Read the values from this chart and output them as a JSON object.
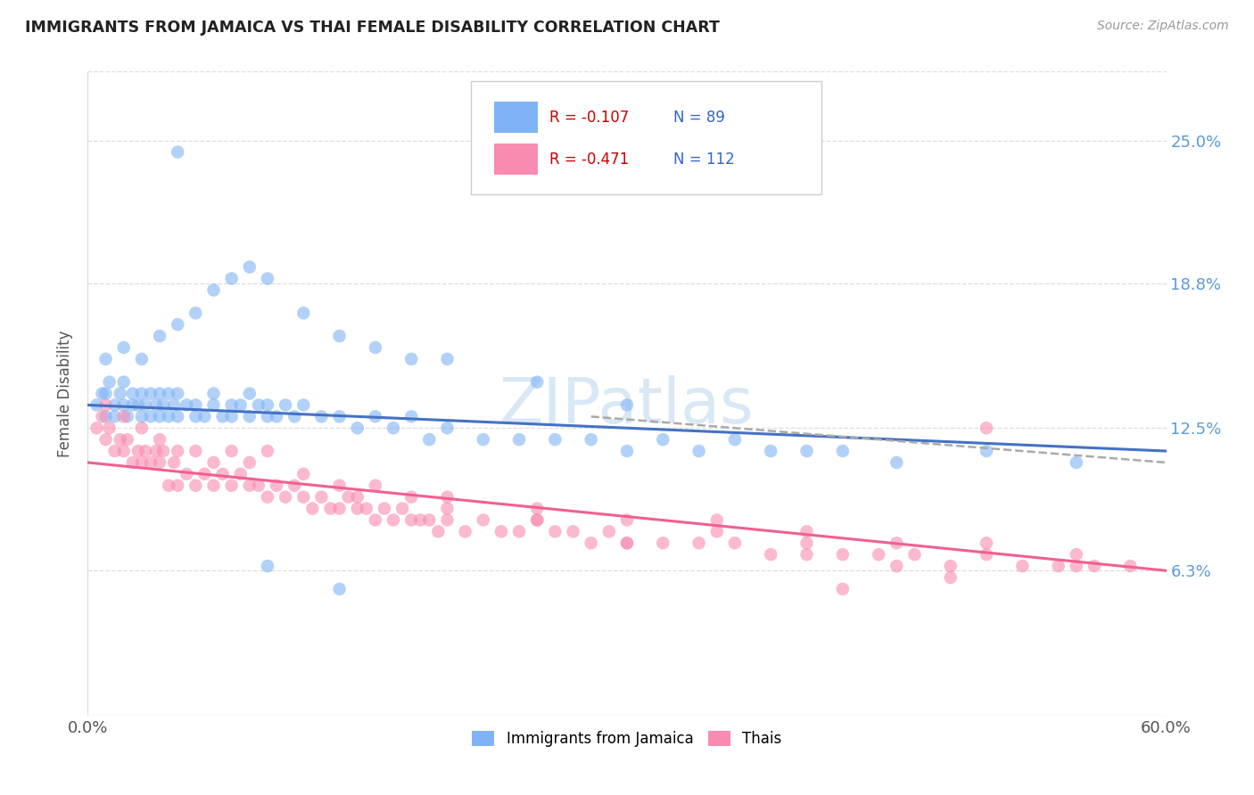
{
  "title": "IMMIGRANTS FROM JAMAICA VS THAI FEMALE DISABILITY CORRELATION CHART",
  "source": "Source: ZipAtlas.com",
  "ylabel": "Female Disability",
  "ytick_values": [
    0.063,
    0.125,
    0.188,
    0.25
  ],
  "ytick_labels": [
    "6.3%",
    "12.5%",
    "18.8%",
    "25.0%"
  ],
  "xlim": [
    0.0,
    0.6
  ],
  "ylim": [
    0.0,
    0.28
  ],
  "blue_color": "#7fb3f5",
  "pink_color": "#f98bb0",
  "blue_line_color": "#4472c4",
  "pink_line_color": "#f06090",
  "dash_line_color": "#aaaaaa",
  "watermark_color": "#d8e8f5",
  "background_color": "#ffffff",
  "title_color": "#222222",
  "source_color": "#999999",
  "axis_label_color": "#555555",
  "tick_color": "#555555",
  "right_tick_color": "#5b9bd5",
  "grid_color": "#dddddd",
  "legend_r_color": "#cc0000",
  "legend_n_color": "#3366cc",
  "blue_scatter_x": [
    0.005,
    0.008,
    0.01,
    0.01,
    0.012,
    0.015,
    0.015,
    0.018,
    0.02,
    0.02,
    0.022,
    0.025,
    0.025,
    0.028,
    0.03,
    0.03,
    0.032,
    0.035,
    0.035,
    0.038,
    0.04,
    0.04,
    0.042,
    0.045,
    0.045,
    0.048,
    0.05,
    0.05,
    0.055,
    0.06,
    0.06,
    0.065,
    0.07,
    0.07,
    0.075,
    0.08,
    0.08,
    0.085,
    0.09,
    0.09,
    0.095,
    0.1,
    0.1,
    0.105,
    0.11,
    0.115,
    0.12,
    0.13,
    0.14,
    0.15,
    0.16,
    0.17,
    0.18,
    0.19,
    0.2,
    0.22,
    0.24,
    0.26,
    0.28,
    0.3,
    0.32,
    0.34,
    0.36,
    0.38,
    0.4,
    0.42,
    0.45,
    0.5,
    0.55,
    0.01,
    0.02,
    0.03,
    0.04,
    0.05,
    0.06,
    0.07,
    0.08,
    0.09,
    0.1,
    0.12,
    0.14,
    0.16,
    0.18,
    0.2,
    0.25,
    0.3,
    0.14,
    0.1,
    0.05
  ],
  "blue_scatter_y": [
    0.135,
    0.14,
    0.13,
    0.14,
    0.145,
    0.135,
    0.13,
    0.14,
    0.135,
    0.145,
    0.13,
    0.135,
    0.14,
    0.135,
    0.13,
    0.14,
    0.135,
    0.13,
    0.14,
    0.135,
    0.14,
    0.13,
    0.135,
    0.14,
    0.13,
    0.135,
    0.13,
    0.14,
    0.135,
    0.13,
    0.135,
    0.13,
    0.135,
    0.14,
    0.13,
    0.135,
    0.13,
    0.135,
    0.14,
    0.13,
    0.135,
    0.13,
    0.135,
    0.13,
    0.135,
    0.13,
    0.135,
    0.13,
    0.13,
    0.125,
    0.13,
    0.125,
    0.13,
    0.12,
    0.125,
    0.12,
    0.12,
    0.12,
    0.12,
    0.115,
    0.12,
    0.115,
    0.12,
    0.115,
    0.115,
    0.115,
    0.11,
    0.115,
    0.11,
    0.155,
    0.16,
    0.155,
    0.165,
    0.17,
    0.175,
    0.185,
    0.19,
    0.195,
    0.19,
    0.175,
    0.165,
    0.16,
    0.155,
    0.155,
    0.145,
    0.135,
    0.055,
    0.065,
    0.245
  ],
  "pink_scatter_x": [
    0.005,
    0.008,
    0.01,
    0.012,
    0.015,
    0.018,
    0.02,
    0.022,
    0.025,
    0.028,
    0.03,
    0.032,
    0.035,
    0.038,
    0.04,
    0.042,
    0.045,
    0.048,
    0.05,
    0.055,
    0.06,
    0.065,
    0.07,
    0.075,
    0.08,
    0.085,
    0.09,
    0.095,
    0.1,
    0.105,
    0.11,
    0.115,
    0.12,
    0.125,
    0.13,
    0.135,
    0.14,
    0.145,
    0.15,
    0.155,
    0.16,
    0.165,
    0.17,
    0.175,
    0.18,
    0.185,
    0.19,
    0.195,
    0.2,
    0.21,
    0.22,
    0.23,
    0.24,
    0.25,
    0.26,
    0.27,
    0.28,
    0.29,
    0.3,
    0.32,
    0.34,
    0.36,
    0.38,
    0.4,
    0.42,
    0.44,
    0.46,
    0.48,
    0.5,
    0.52,
    0.54,
    0.56,
    0.58,
    0.01,
    0.02,
    0.03,
    0.04,
    0.05,
    0.06,
    0.07,
    0.08,
    0.09,
    0.1,
    0.12,
    0.14,
    0.16,
    0.18,
    0.2,
    0.25,
    0.3,
    0.35,
    0.4,
    0.45,
    0.5,
    0.55,
    0.42,
    0.48,
    0.3,
    0.2,
    0.15,
    0.25,
    0.35,
    0.45,
    0.55,
    0.5,
    0.4
  ],
  "pink_scatter_y": [
    0.125,
    0.13,
    0.12,
    0.125,
    0.115,
    0.12,
    0.115,
    0.12,
    0.11,
    0.115,
    0.11,
    0.115,
    0.11,
    0.115,
    0.11,
    0.115,
    0.1,
    0.11,
    0.1,
    0.105,
    0.1,
    0.105,
    0.1,
    0.105,
    0.1,
    0.105,
    0.1,
    0.1,
    0.095,
    0.1,
    0.095,
    0.1,
    0.095,
    0.09,
    0.095,
    0.09,
    0.09,
    0.095,
    0.09,
    0.09,
    0.085,
    0.09,
    0.085,
    0.09,
    0.085,
    0.085,
    0.085,
    0.08,
    0.085,
    0.08,
    0.085,
    0.08,
    0.08,
    0.085,
    0.08,
    0.08,
    0.075,
    0.08,
    0.075,
    0.075,
    0.075,
    0.075,
    0.07,
    0.075,
    0.07,
    0.07,
    0.07,
    0.065,
    0.07,
    0.065,
    0.065,
    0.065,
    0.065,
    0.135,
    0.13,
    0.125,
    0.12,
    0.115,
    0.115,
    0.11,
    0.115,
    0.11,
    0.115,
    0.105,
    0.1,
    0.1,
    0.095,
    0.095,
    0.09,
    0.085,
    0.085,
    0.08,
    0.075,
    0.075,
    0.07,
    0.055,
    0.06,
    0.075,
    0.09,
    0.095,
    0.085,
    0.08,
    0.065,
    0.065,
    0.125,
    0.07
  ]
}
